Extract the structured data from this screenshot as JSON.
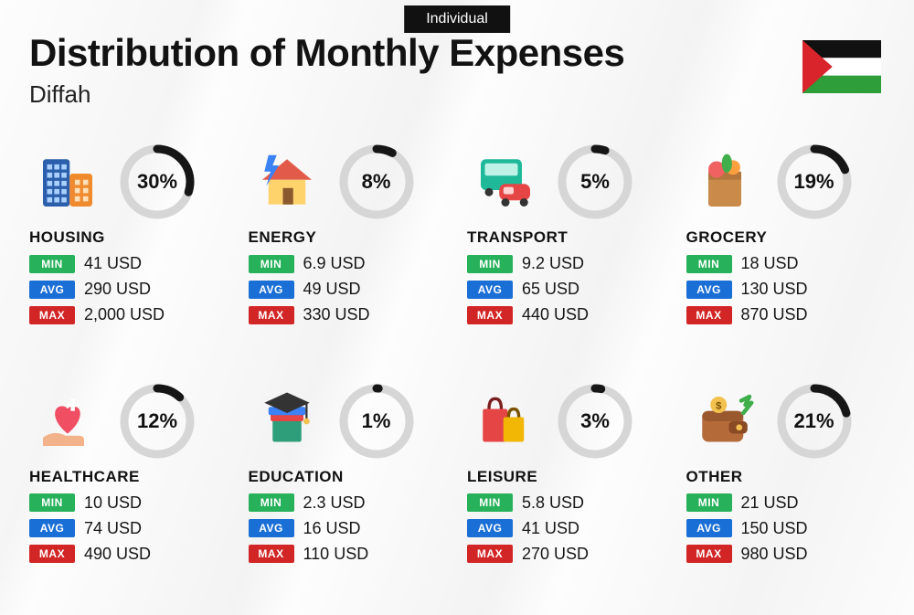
{
  "tag": "Individual",
  "title": "Distribution of Monthly Expenses",
  "subtitle": "Diffah",
  "currency_suffix": "USD",
  "donut_style": {
    "radius": 36,
    "stroke_width": 9,
    "track_color": "#d6d6d6",
    "progress_color": "#161616",
    "pct_fontsize": 22
  },
  "badge_colors": {
    "min": "#26b15a",
    "avg": "#1a6fd6",
    "max": "#d22626"
  },
  "flag": {
    "stripes": [
      "#111111",
      "#ffffff",
      "#2e9e3a"
    ],
    "triangle": "#d8242a"
  },
  "categories": [
    {
      "key": "housing",
      "label": "HOUSING",
      "pct": 30,
      "min": "41",
      "avg": "290",
      "max": "2,000",
      "icon": "building-icon"
    },
    {
      "key": "energy",
      "label": "ENERGY",
      "pct": 8,
      "min": "6.9",
      "avg": "49",
      "max": "330",
      "icon": "house-bolt-icon"
    },
    {
      "key": "transport",
      "label": "TRANSPORT",
      "pct": 5,
      "min": "9.2",
      "avg": "65",
      "max": "440",
      "icon": "bus-car-icon"
    },
    {
      "key": "grocery",
      "label": "GROCERY",
      "pct": 19,
      "min": "18",
      "avg": "130",
      "max": "870",
      "icon": "grocery-bag-icon"
    },
    {
      "key": "healthcare",
      "label": "HEALTHCARE",
      "pct": 12,
      "min": "10",
      "avg": "74",
      "max": "490",
      "icon": "heart-hand-icon"
    },
    {
      "key": "education",
      "label": "EDUCATION",
      "pct": 1,
      "min": "2.3",
      "avg": "16",
      "max": "110",
      "icon": "grad-cap-icon"
    },
    {
      "key": "leisure",
      "label": "LEISURE",
      "pct": 3,
      "min": "5.8",
      "avg": "41",
      "max": "270",
      "icon": "shopping-bags-icon"
    },
    {
      "key": "other",
      "label": "OTHER",
      "pct": 21,
      "min": "21",
      "avg": "150",
      "max": "980",
      "icon": "wallet-icon"
    }
  ],
  "badge_labels": {
    "min": "MIN",
    "avg": "AVG",
    "max": "MAX"
  }
}
